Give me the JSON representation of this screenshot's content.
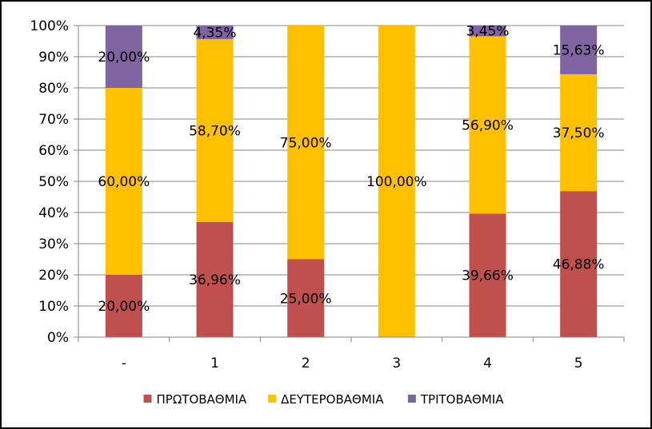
{
  "chart_data": {
    "type": "bar",
    "stacked": true,
    "percent_stacked": true,
    "categories": [
      "-",
      "1",
      "2",
      "3",
      "4",
      "5"
    ],
    "series": [
      {
        "name": "ΠΡΩΤΟΒΑΘΜΙΑ",
        "color": "#c0504d",
        "values": [
          20.0,
          36.96,
          25.0,
          0,
          39.66,
          46.88
        ],
        "labels": [
          "20,00%",
          "36,96%",
          "25,00%",
          "",
          "39,66%",
          "46,88%"
        ]
      },
      {
        "name": "ΔΕΥΤΕΡΟΒΑΘΜΙΑ",
        "color": "#ffc000",
        "values": [
          60.0,
          58.7,
          75.0,
          100.0,
          56.9,
          37.5
        ],
        "labels": [
          "60,00%",
          "58,70%",
          "75,00%",
          "100,00%",
          "56,90%",
          "37,50%"
        ]
      },
      {
        "name": "ΤΡΙΤΟΒΑΘΜΙΑ",
        "color": "#8064a2",
        "values": [
          20.0,
          4.35,
          0,
          0,
          3.45,
          15.63
        ],
        "labels": [
          "20,00%",
          "4,35%",
          "",
          "",
          "3,45%",
          "15,63%"
        ]
      }
    ],
    "ylim": [
      0,
      100
    ],
    "yticks": [
      "0%",
      "10%",
      "20%",
      "30%",
      "40%",
      "50%",
      "60%",
      "70%",
      "80%",
      "90%",
      "100%"
    ],
    "grid": true,
    "legend_position": "bottom"
  }
}
